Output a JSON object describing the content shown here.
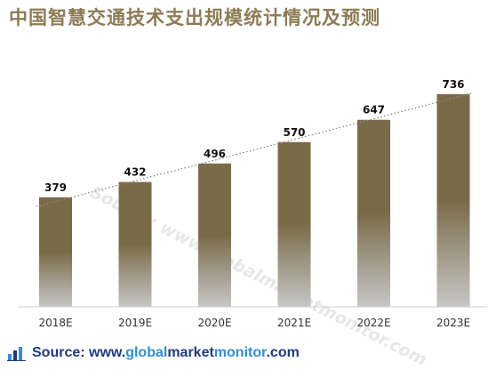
{
  "title": "中国智慧交通技术支出规模统计情况及预测",
  "colors": {
    "title": "#8c7c55",
    "bar_top": "#7a6b48",
    "bar_bottom": "#c6c6c6",
    "trend_line": "#8a8a8a",
    "source_dark": "#1f3a82",
    "source_light": "#2f8fd8"
  },
  "watermark": "Source: www.globalmarketmonitor.com",
  "source": {
    "icon": "bar-chart-icon",
    "prefix": "Source: www.",
    "part1": "global",
    "part2": "market",
    "part3": "monitor",
    "suffix": ".com"
  },
  "chart_data": {
    "type": "bar",
    "categories": [
      "2018E",
      "2019E",
      "2020E",
      "2021E",
      "2022E",
      "2023E"
    ],
    "values": [
      379,
      432,
      496,
      570,
      647,
      736
    ],
    "data_labels": [
      "379",
      "432",
      "496",
      "570",
      "647",
      "736"
    ],
    "trendline": "linear, dotted",
    "ylim": [
      0,
      800
    ],
    "yaxis_visible": false,
    "grid": false,
    "legend": "none"
  }
}
